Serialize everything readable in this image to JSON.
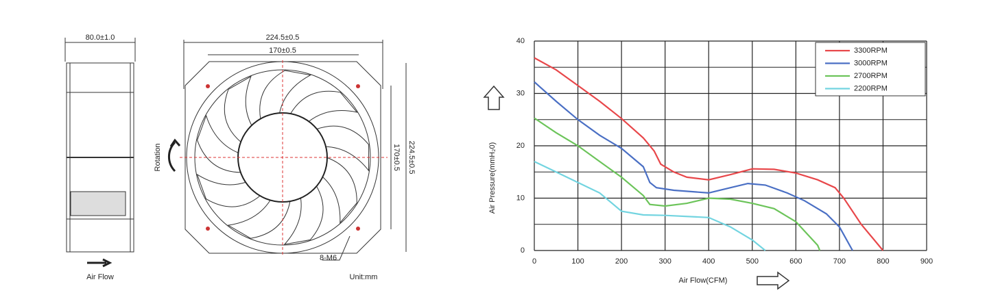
{
  "drawing": {
    "side_width": "80.0±1.0",
    "air_flow": "Air Flow",
    "outer_width": "224.5±0.5",
    "hole_spacing": "170±0.5",
    "hole_spacing_vertical": "170±0.5",
    "outer_height": "224.5±0.5",
    "rotation": "Rotation",
    "screw": "8-M6",
    "unit": "Unit:mm"
  },
  "chart_data": {
    "type": "line",
    "xlabel": "Air Flow(CFM)",
    "ylabel": "Air Pressure(mmH₂0)",
    "xlim": [
      0,
      900
    ],
    "xticks": [
      0,
      100,
      200,
      300,
      400,
      500,
      600,
      700,
      800,
      900
    ],
    "ylim": [
      0,
      40
    ],
    "yticks": [
      0,
      10,
      20,
      30,
      40
    ],
    "grid": true,
    "legend": "top-right",
    "series": [
      {
        "name": "3300RPM",
        "color": "#e8474a",
        "x": [
          0,
          50,
          100,
          150,
          200,
          250,
          275,
          290,
          320,
          350,
          400,
          450,
          500,
          550,
          600,
          650,
          690,
          710,
          750,
          800
        ],
        "values": [
          36.8,
          34.5,
          31.5,
          28.5,
          25.2,
          21.5,
          19,
          16.5,
          15,
          14,
          13.5,
          14.5,
          15.6,
          15.5,
          14.8,
          13.5,
          12,
          10,
          5,
          0
        ]
      },
      {
        "name": "3000RPM",
        "color": "#4a6fc4",
        "x": [
          0,
          50,
          100,
          150,
          200,
          250,
          265,
          280,
          320,
          400,
          450,
          490,
          530,
          580,
          620,
          670,
          700,
          730
        ],
        "values": [
          32.2,
          28.5,
          25,
          22,
          19.5,
          16,
          13,
          12,
          11.5,
          11,
          12,
          12.8,
          12.5,
          11,
          9.5,
          7,
          4.5,
          0
        ]
      },
      {
        "name": "2700RPM",
        "color": "#6cc45a",
        "x": [
          0,
          50,
          100,
          150,
          200,
          250,
          265,
          300,
          350,
          400,
          450,
          500,
          550,
          600,
          650,
          655
        ],
        "values": [
          25.3,
          22.5,
          20,
          17,
          14,
          10.5,
          8.8,
          8.5,
          9,
          10,
          9.8,
          9,
          8,
          5.5,
          1,
          0
        ]
      },
      {
        "name": "2200RPM",
        "color": "#72d4e0",
        "x": [
          0,
          50,
          100,
          150,
          200,
          250,
          300,
          400,
          450,
          500,
          530
        ],
        "values": [
          17,
          15,
          13,
          11,
          7.5,
          6.8,
          6.7,
          6.3,
          4.5,
          2,
          0
        ]
      }
    ]
  }
}
